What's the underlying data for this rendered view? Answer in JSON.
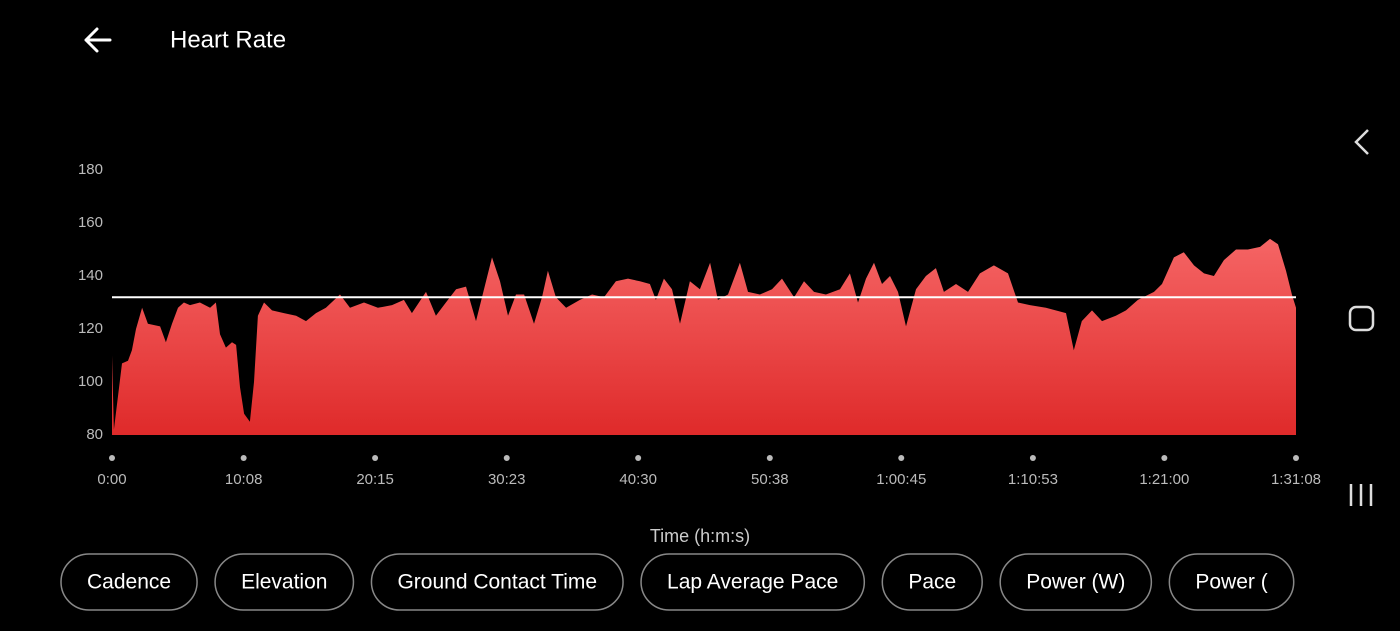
{
  "header": {
    "title": "Heart Rate"
  },
  "chart_data": {
    "type": "area",
    "x_label": "Time (h:m:s)",
    "x": [
      0,
      9,
      28,
      46,
      74,
      92,
      111,
      139,
      166,
      222,
      249,
      277,
      305,
      332,
      360,
      406,
      453,
      480,
      499,
      526,
      554,
      573,
      591,
      610,
      637,
      656,
      674,
      702,
      739,
      794,
      850,
      896,
      942,
      988,
      1053,
      1099,
      1164,
      1228,
      1293,
      1348,
      1385,
      1450,
      1496,
      1542,
      1589,
      1635,
      1681,
      1718,
      1755,
      1792,
      1829,
      1866,
      1903,
      1949,
      1986,
      2013,
      2050,
      2097,
      2161,
      2217,
      2272,
      2327,
      2383,
      2438,
      2484,
      2512,
      2549,
      2586,
      2623,
      2669,
      2715,
      2762,
      2798,
      2845,
      2900,
      2937,
      2992,
      3048,
      3094,
      3150,
      3196,
      3242,
      3297,
      3362,
      3408,
      3445,
      3482,
      3519,
      3556,
      3593,
      3630,
      3667,
      3713,
      3759,
      3805,
      3842,
      3898,
      3953,
      4008,
      4073,
      4138,
      4184,
      4239,
      4313,
      4406,
      4442,
      4479,
      4526,
      4572,
      4636,
      4683,
      4738,
      4812,
      4849,
      4904,
      4950,
      4997,
      5043,
      5089,
      5135,
      5191,
      5246,
      5302,
      5348,
      5385,
      5422,
      5449,
      5468
    ],
    "series": [
      {
        "color": "#ef4444",
        "values": [
          110,
          82,
          95,
          107,
          108,
          112,
          120,
          128,
          122,
          121,
          115,
          122,
          128,
          130,
          129,
          130,
          128,
          130,
          118,
          113,
          115,
          114,
          98,
          88,
          85,
          100,
          125,
          130,
          127,
          126,
          125,
          123,
          126,
          128,
          133,
          128,
          130,
          128,
          129,
          131,
          126,
          134,
          125,
          130,
          135,
          136,
          123,
          135,
          147,
          138,
          125,
          133,
          133,
          122,
          132,
          142,
          132,
          128,
          131,
          133,
          132,
          138,
          139,
          138,
          137,
          131,
          139,
          135,
          122,
          138,
          135,
          145,
          131,
          133,
          145,
          134,
          133,
          135,
          139,
          132,
          138,
          134,
          133,
          135,
          141,
          130,
          139,
          145,
          137,
          140,
          134,
          121,
          135,
          140,
          143,
          134,
          137,
          134,
          141,
          144,
          141,
          130,
          129,
          128,
          126,
          112,
          123,
          127,
          123,
          125,
          127,
          131,
          134,
          137,
          147,
          149,
          144,
          141,
          140,
          146,
          150,
          150,
          151,
          154,
          152,
          142,
          133,
          128
        ]
      }
    ],
    "reference_line": 132,
    "xlim": [
      0,
      5468
    ],
    "xticks": [
      {
        "value": 0,
        "label": "0:00"
      },
      {
        "value": 608,
        "label": "10:08"
      },
      {
        "value": 1215,
        "label": "20:15"
      },
      {
        "value": 1823,
        "label": "30:23"
      },
      {
        "value": 2430,
        "label": "40:30"
      },
      {
        "value": 3038,
        "label": "50:38"
      },
      {
        "value": 3645,
        "label": "1:00:45"
      },
      {
        "value": 4253,
        "label": "1:10:53"
      },
      {
        "value": 4860,
        "label": "1:21:00"
      },
      {
        "value": 5468,
        "label": "1:31:08"
      }
    ],
    "ylim": [
      80,
      180
    ],
    "yticks": [
      80,
      100,
      120,
      140,
      160,
      180
    ]
  },
  "chips": [
    "Cadence",
    "Elevation",
    "Ground Contact Time",
    "Lap Average Pace",
    "Pace",
    "Power (W)",
    "Power ("
  ]
}
